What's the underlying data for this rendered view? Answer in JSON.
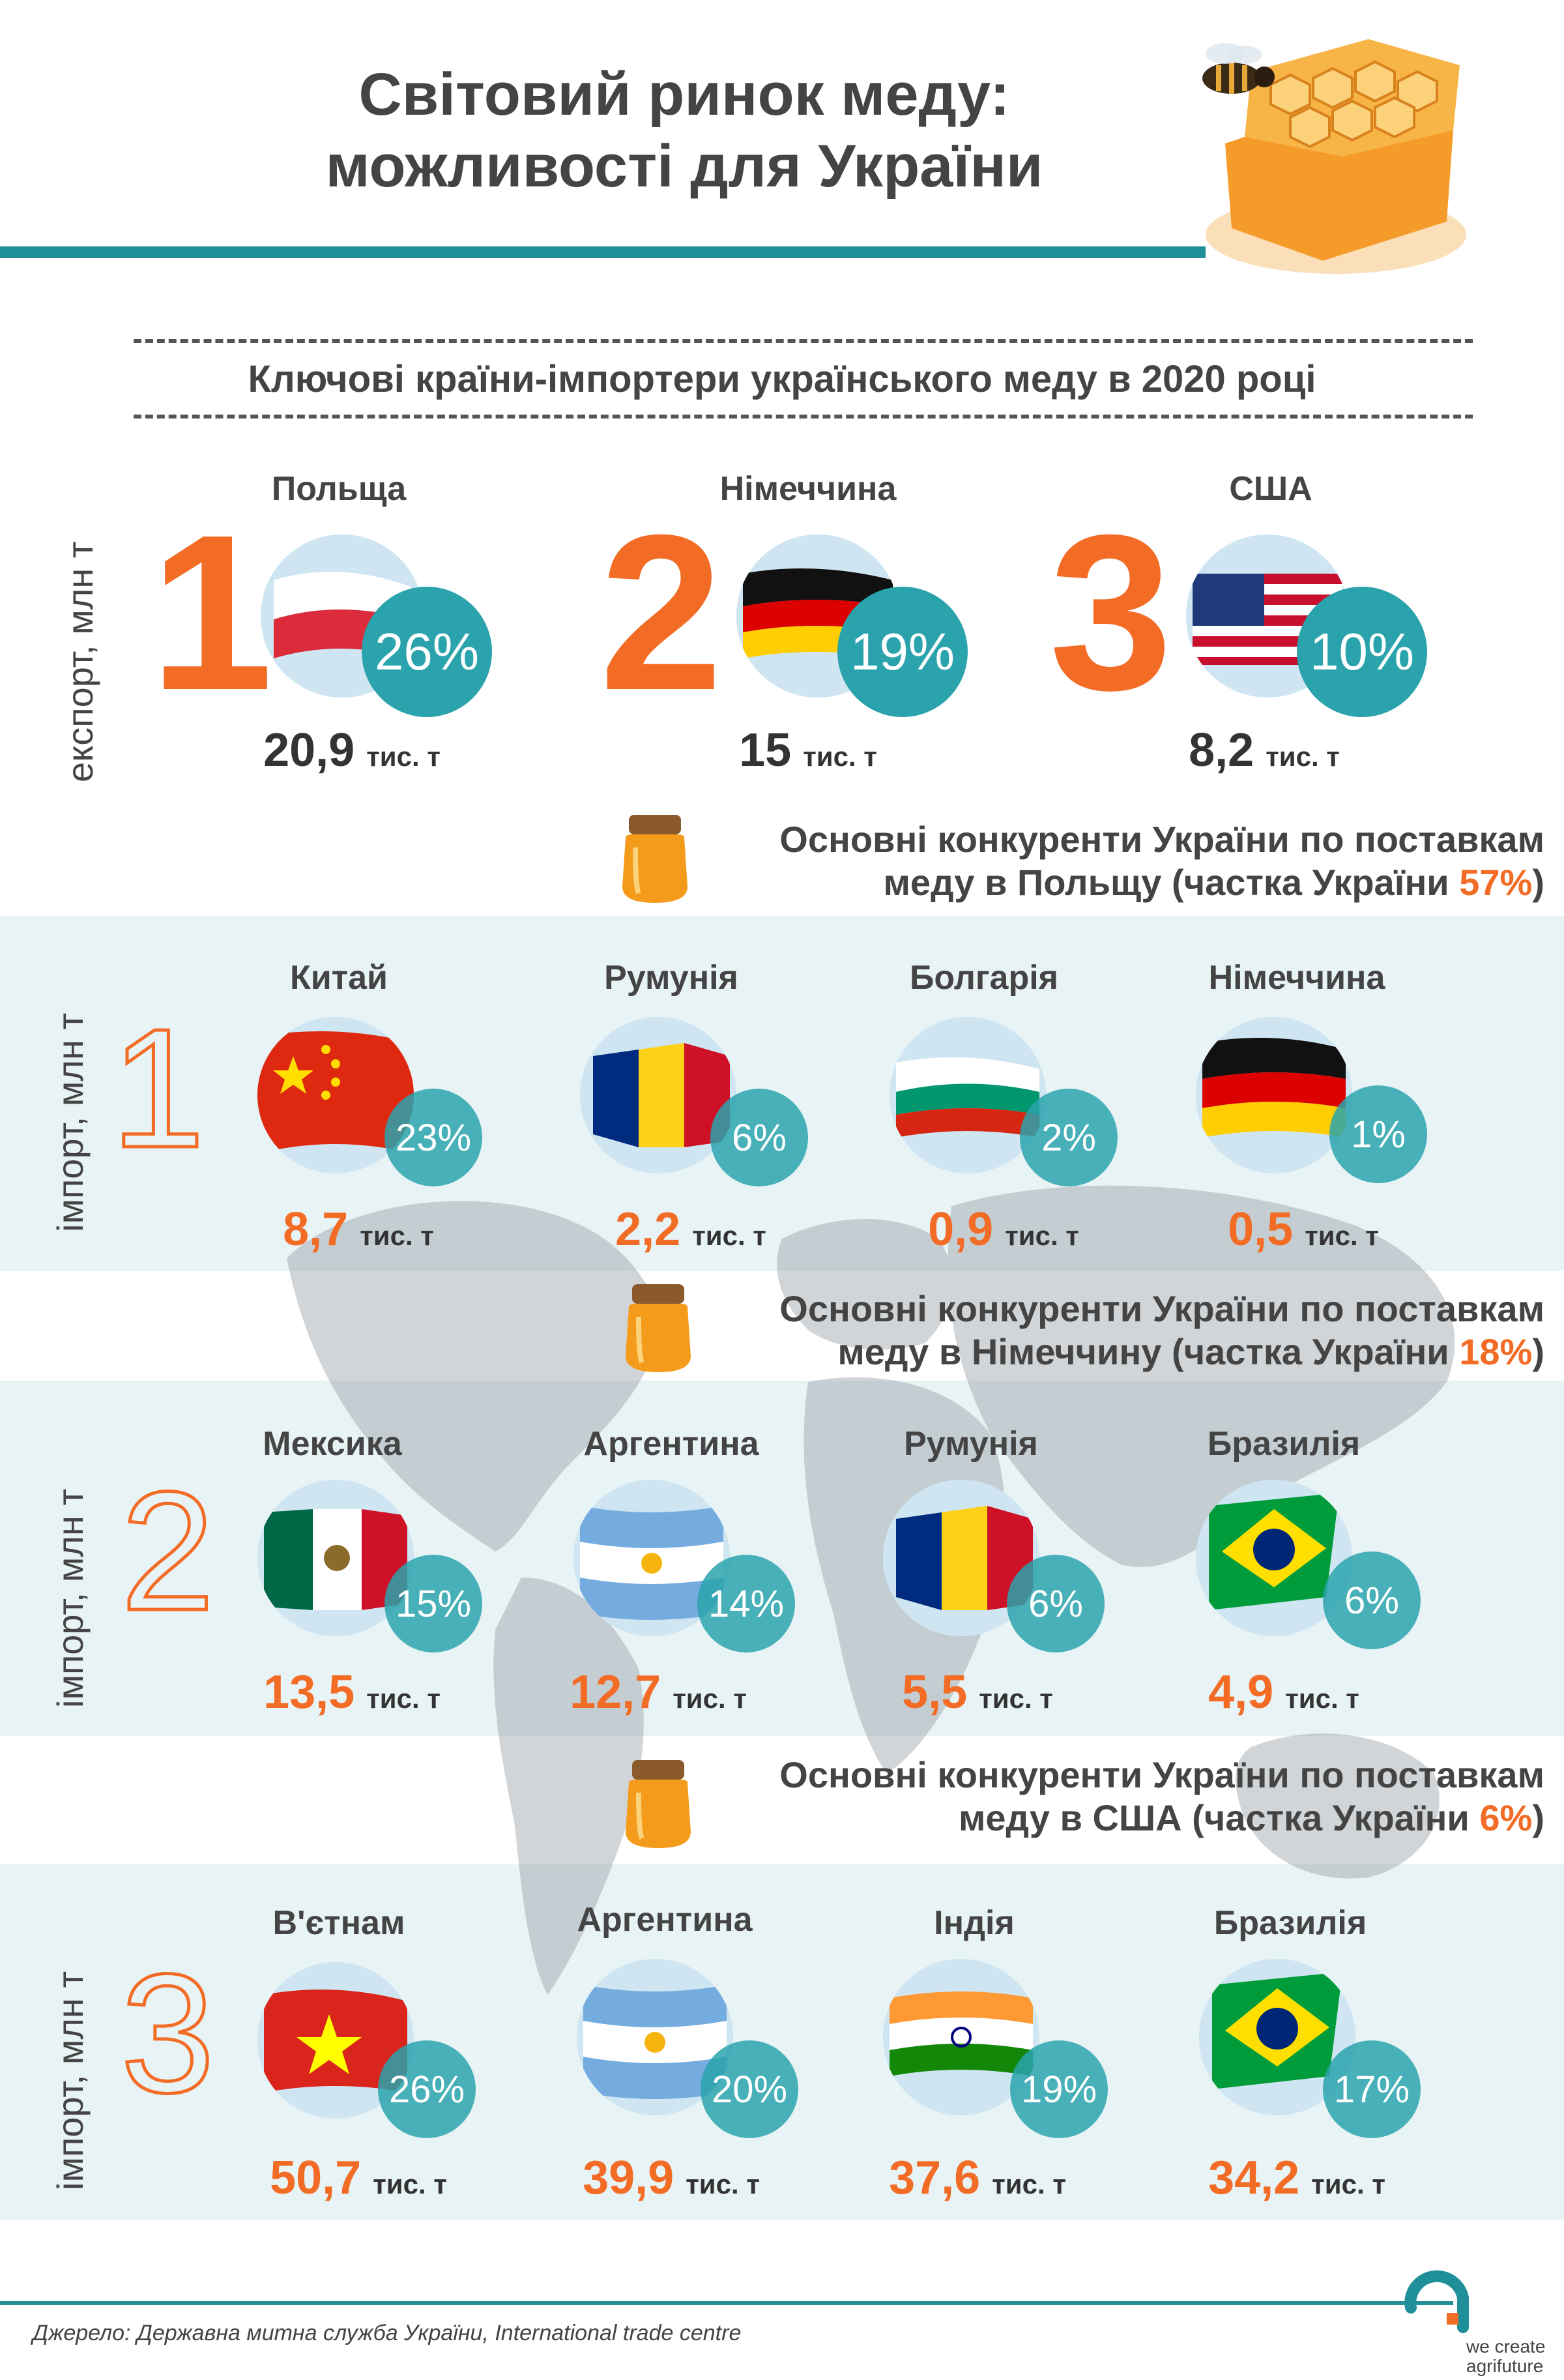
{
  "header": {
    "title_line1": "Світовий ринок меду:",
    "title_line2": "можливості для України",
    "subtitle": "Ключові країни-імпортери українського меду в 2020 році"
  },
  "export": {
    "axis_label": "експорт, млн т",
    "items": [
      {
        "rank": "1",
        "country": "Польща",
        "share": "26%",
        "value": "20,9",
        "unit": "тис. т"
      },
      {
        "rank": "2",
        "country": "Німеччина",
        "share": "19%",
        "value": "15",
        "unit": "тис. т"
      },
      {
        "rank": "3",
        "country": "США",
        "share": "10%",
        "value": "8,2",
        "unit": "тис. т"
      }
    ]
  },
  "competitors": [
    {
      "title_line1": "Основні конкуренти України по поставкам",
      "title_line2_prefix": "меду в Польщу (частка України ",
      "ukraine_share": "57%",
      "title_line2_suffix": ")",
      "axis_label": "імпорт, млн т",
      "rank": "1",
      "items": [
        {
          "country": "Китай",
          "share": "23%",
          "value": "8,7",
          "unit": "тис. т"
        },
        {
          "country": "Румунія",
          "share": "6%",
          "value": "2,2",
          "unit": "тис. т"
        },
        {
          "country": "Болгарія",
          "share": "2%",
          "value": "0,9",
          "unit": "тис. т"
        },
        {
          "country": "Німеччина",
          "share": "1%",
          "value": "0,5",
          "unit": "тис. т"
        }
      ]
    },
    {
      "title_line1": "Основні конкуренти України по поставкам",
      "title_line2_prefix": "меду в Німеччину (частка України ",
      "ukraine_share": "18%",
      "title_line2_suffix": ")",
      "axis_label": "імпорт, млн т",
      "rank": "2",
      "items": [
        {
          "country": "Мексика",
          "share": "15%",
          "value": "13,5",
          "unit": "тис. т"
        },
        {
          "country": "Аргентина",
          "share": "14%",
          "value": "12,7",
          "unit": "тис. т"
        },
        {
          "country": "Румунія",
          "share": "6%",
          "value": "5,5",
          "unit": "тис. т"
        },
        {
          "country": "Бразилія",
          "share": "6%",
          "value": "4,9",
          "unit": "тис. т"
        }
      ]
    },
    {
      "title_line1": "Основні конкуренти України по поставкам",
      "title_line2_prefix": "меду в США (частка України ",
      "ukraine_share": "6%",
      "title_line2_suffix": ")",
      "axis_label": "імпорт, млн т",
      "rank": "3",
      "items": [
        {
          "country": "В'єтнам",
          "share": "26%",
          "value": "50,7",
          "unit": "тис. т"
        },
        {
          "country": "Аргентина",
          "share": "20%",
          "value": "39,9",
          "unit": "тис. т"
        },
        {
          "country": "Індія",
          "share": "19%",
          "value": "37,6",
          "unit": "тис. т"
        },
        {
          "country": "Бразилія",
          "share": "17%",
          "value": "34,2",
          "unit": "тис. т"
        }
      ]
    }
  ],
  "footer": {
    "source": "Джерело: Державна митна служба України, International trade centre",
    "logo_line1": "we create",
    "logo_line2": "agrifuture"
  },
  "colors": {
    "accent_orange": "#f36c26",
    "teal": "#2aa3ad",
    "band": "#e8f3f5"
  }
}
